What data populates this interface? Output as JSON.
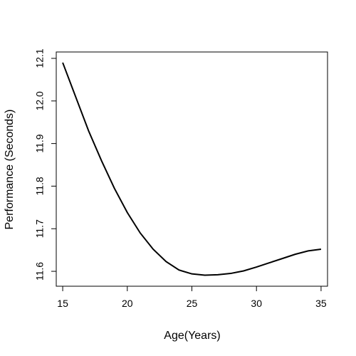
{
  "chart_data": {
    "type": "line",
    "title": "",
    "xlabel": "Age(Years)",
    "ylabel": "Performance (Seconds)",
    "xlim": [
      14.5,
      35.5
    ],
    "ylim": [
      11.565,
      12.115
    ],
    "x_ticks": [
      15,
      20,
      25,
      30,
      35
    ],
    "y_ticks": [
      11.6,
      11.7,
      11.8,
      11.9,
      12.0,
      12.1
    ],
    "x_tick_labels": [
      "15",
      "20",
      "25",
      "30",
      "35"
    ],
    "y_tick_labels": [
      "11.6",
      "11.7",
      "11.8",
      "11.9",
      "12.0",
      "12.1"
    ],
    "grid": false,
    "line_color": "#000000",
    "series": [
      {
        "x": [
          15,
          16,
          17,
          18,
          19,
          20,
          21,
          22,
          23,
          24,
          25,
          26,
          27,
          28,
          29,
          30,
          31,
          32,
          33,
          34,
          35
        ],
        "values": [
          12.09,
          12.01,
          11.93,
          11.86,
          11.795,
          11.738,
          11.69,
          11.652,
          11.623,
          11.603,
          11.594,
          11.591,
          11.592,
          11.595,
          11.601,
          11.61,
          11.62,
          11.63,
          11.64,
          11.648,
          11.652
        ]
      }
    ]
  }
}
